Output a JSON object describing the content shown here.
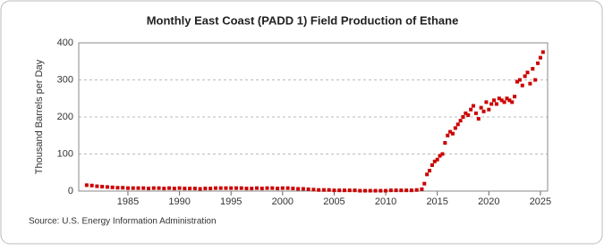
{
  "chart_data": {
    "type": "scatter",
    "title": "Monthly East Coast (PADD 1) Field Production of Ethane",
    "y_label": "Thousand Barrels per Day",
    "source": "Source: U.S. Energy Information Administration",
    "color": "#cc0000",
    "grid": true,
    "xlim": [
      1980.23,
      2025.7
    ],
    "ylim": [
      0,
      400
    ],
    "xticks": [
      1985,
      1990,
      1995,
      2000,
      2005,
      2010,
      2015,
      2020,
      2025
    ],
    "yticks": [
      0,
      100,
      200,
      300,
      400
    ],
    "x": [
      1981,
      1981.5,
      1982,
      1982.5,
      1983,
      1983.5,
      1984,
      1984.5,
      1985,
      1985.5,
      1986,
      1986.5,
      1987,
      1987.5,
      1988,
      1988.5,
      1989,
      1989.5,
      1990,
      1990.5,
      1991,
      1991.5,
      1992,
      1992.5,
      1993,
      1993.5,
      1994,
      1994.5,
      1995,
      1995.5,
      1996,
      1996.5,
      1997,
      1997.5,
      1998,
      1998.5,
      1999,
      1999.5,
      2000,
      2000.5,
      2001,
      2001.5,
      2002,
      2002.5,
      2003,
      2003.5,
      2004,
      2004.5,
      2005,
      2005.5,
      2006,
      2006.5,
      2007,
      2007.5,
      2008,
      2008.5,
      2009,
      2009.5,
      2010,
      2010.5,
      2011,
      2011.5,
      2012,
      2012.5,
      2013,
      2013.5,
      2013.75,
      2014,
      2014.25,
      2014.5,
      2014.75,
      2015,
      2015.25,
      2015.5,
      2015.75,
      2016,
      2016.25,
      2016.5,
      2016.75,
      2017,
      2017.25,
      2017.5,
      2017.75,
      2018,
      2018.25,
      2018.5,
      2018.75,
      2019,
      2019.25,
      2019.5,
      2019.75,
      2020,
      2020.25,
      2020.5,
      2020.75,
      2021,
      2021.25,
      2021.5,
      2021.75,
      2022,
      2022.25,
      2022.5,
      2022.75,
      2023,
      2023.25,
      2023.5,
      2023.75,
      2024,
      2024.25,
      2024.5,
      2024.75,
      2025,
      2025.25
    ],
    "values": [
      16,
      15,
      13,
      12,
      11,
      10,
      9,
      9,
      8,
      8,
      8,
      8,
      7,
      8,
      8,
      7,
      8,
      7,
      8,
      7,
      7,
      7,
      6,
      7,
      7,
      8,
      8,
      8,
      8,
      8,
      8,
      7,
      7,
      8,
      7,
      8,
      8,
      7,
      8,
      8,
      7,
      6,
      6,
      5,
      4,
      3,
      3,
      3,
      2,
      2,
      2,
      2,
      2,
      1,
      1,
      1,
      1,
      1,
      1,
      2,
      2,
      2,
      2,
      2,
      3,
      5,
      20,
      45,
      55,
      70,
      80,
      85,
      95,
      100,
      130,
      150,
      160,
      155,
      170,
      180,
      190,
      200,
      210,
      205,
      220,
      230,
      210,
      195,
      225,
      215,
      240,
      220,
      235,
      245,
      235,
      250,
      245,
      240,
      250,
      245,
      240,
      255,
      295,
      300,
      285,
      310,
      320,
      290,
      330,
      300,
      345,
      360,
      375
    ]
  }
}
